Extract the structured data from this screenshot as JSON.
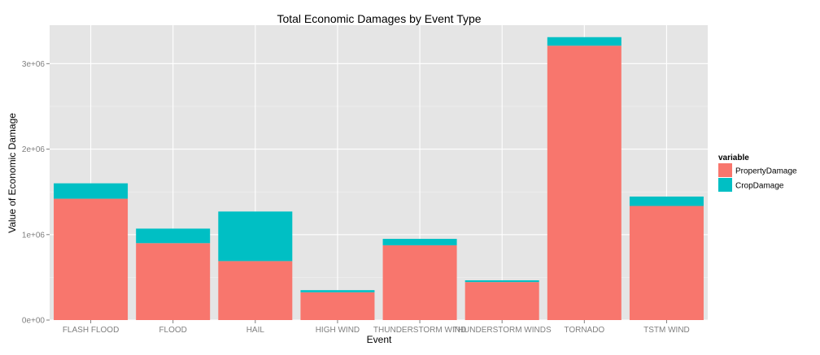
{
  "chart_data": {
    "type": "bar",
    "stacked": true,
    "title": "Total Economic Damages by Event Type",
    "xlabel": "Event",
    "ylabel": "Value of Economic Damage",
    "categories": [
      "FLASH FLOOD",
      "FLOOD",
      "HAIL",
      "HIGH WIND",
      "THUNDERSTORM WIND",
      "THUNDERSTORM WINDS",
      "TORNADO",
      "TSTM WIND"
    ],
    "series": [
      {
        "name": "PropertyDamage",
        "color": "#F8766D",
        "values": [
          1420000,
          900000,
          690000,
          325000,
          875000,
          445000,
          3210000,
          1335000
        ]
      },
      {
        "name": "CropDamage",
        "color": "#00BFC4",
        "values": [
          180000,
          170000,
          580000,
          25000,
          75000,
          20000,
          100000,
          110000
        ]
      }
    ],
    "ylim": [
      0,
      3450000
    ],
    "yticks": [
      0,
      1000000,
      2000000,
      3000000
    ],
    "ytick_labels": [
      "0e+00",
      "1e+06",
      "2e+06",
      "3e+06"
    ],
    "grid": true,
    "legend": {
      "title": "variable",
      "placement": "right"
    },
    "colors": {
      "panel_background": "#E5E5E5",
      "grid_major": "#FFFFFF",
      "grid_minor": "#F2F2F2"
    }
  }
}
